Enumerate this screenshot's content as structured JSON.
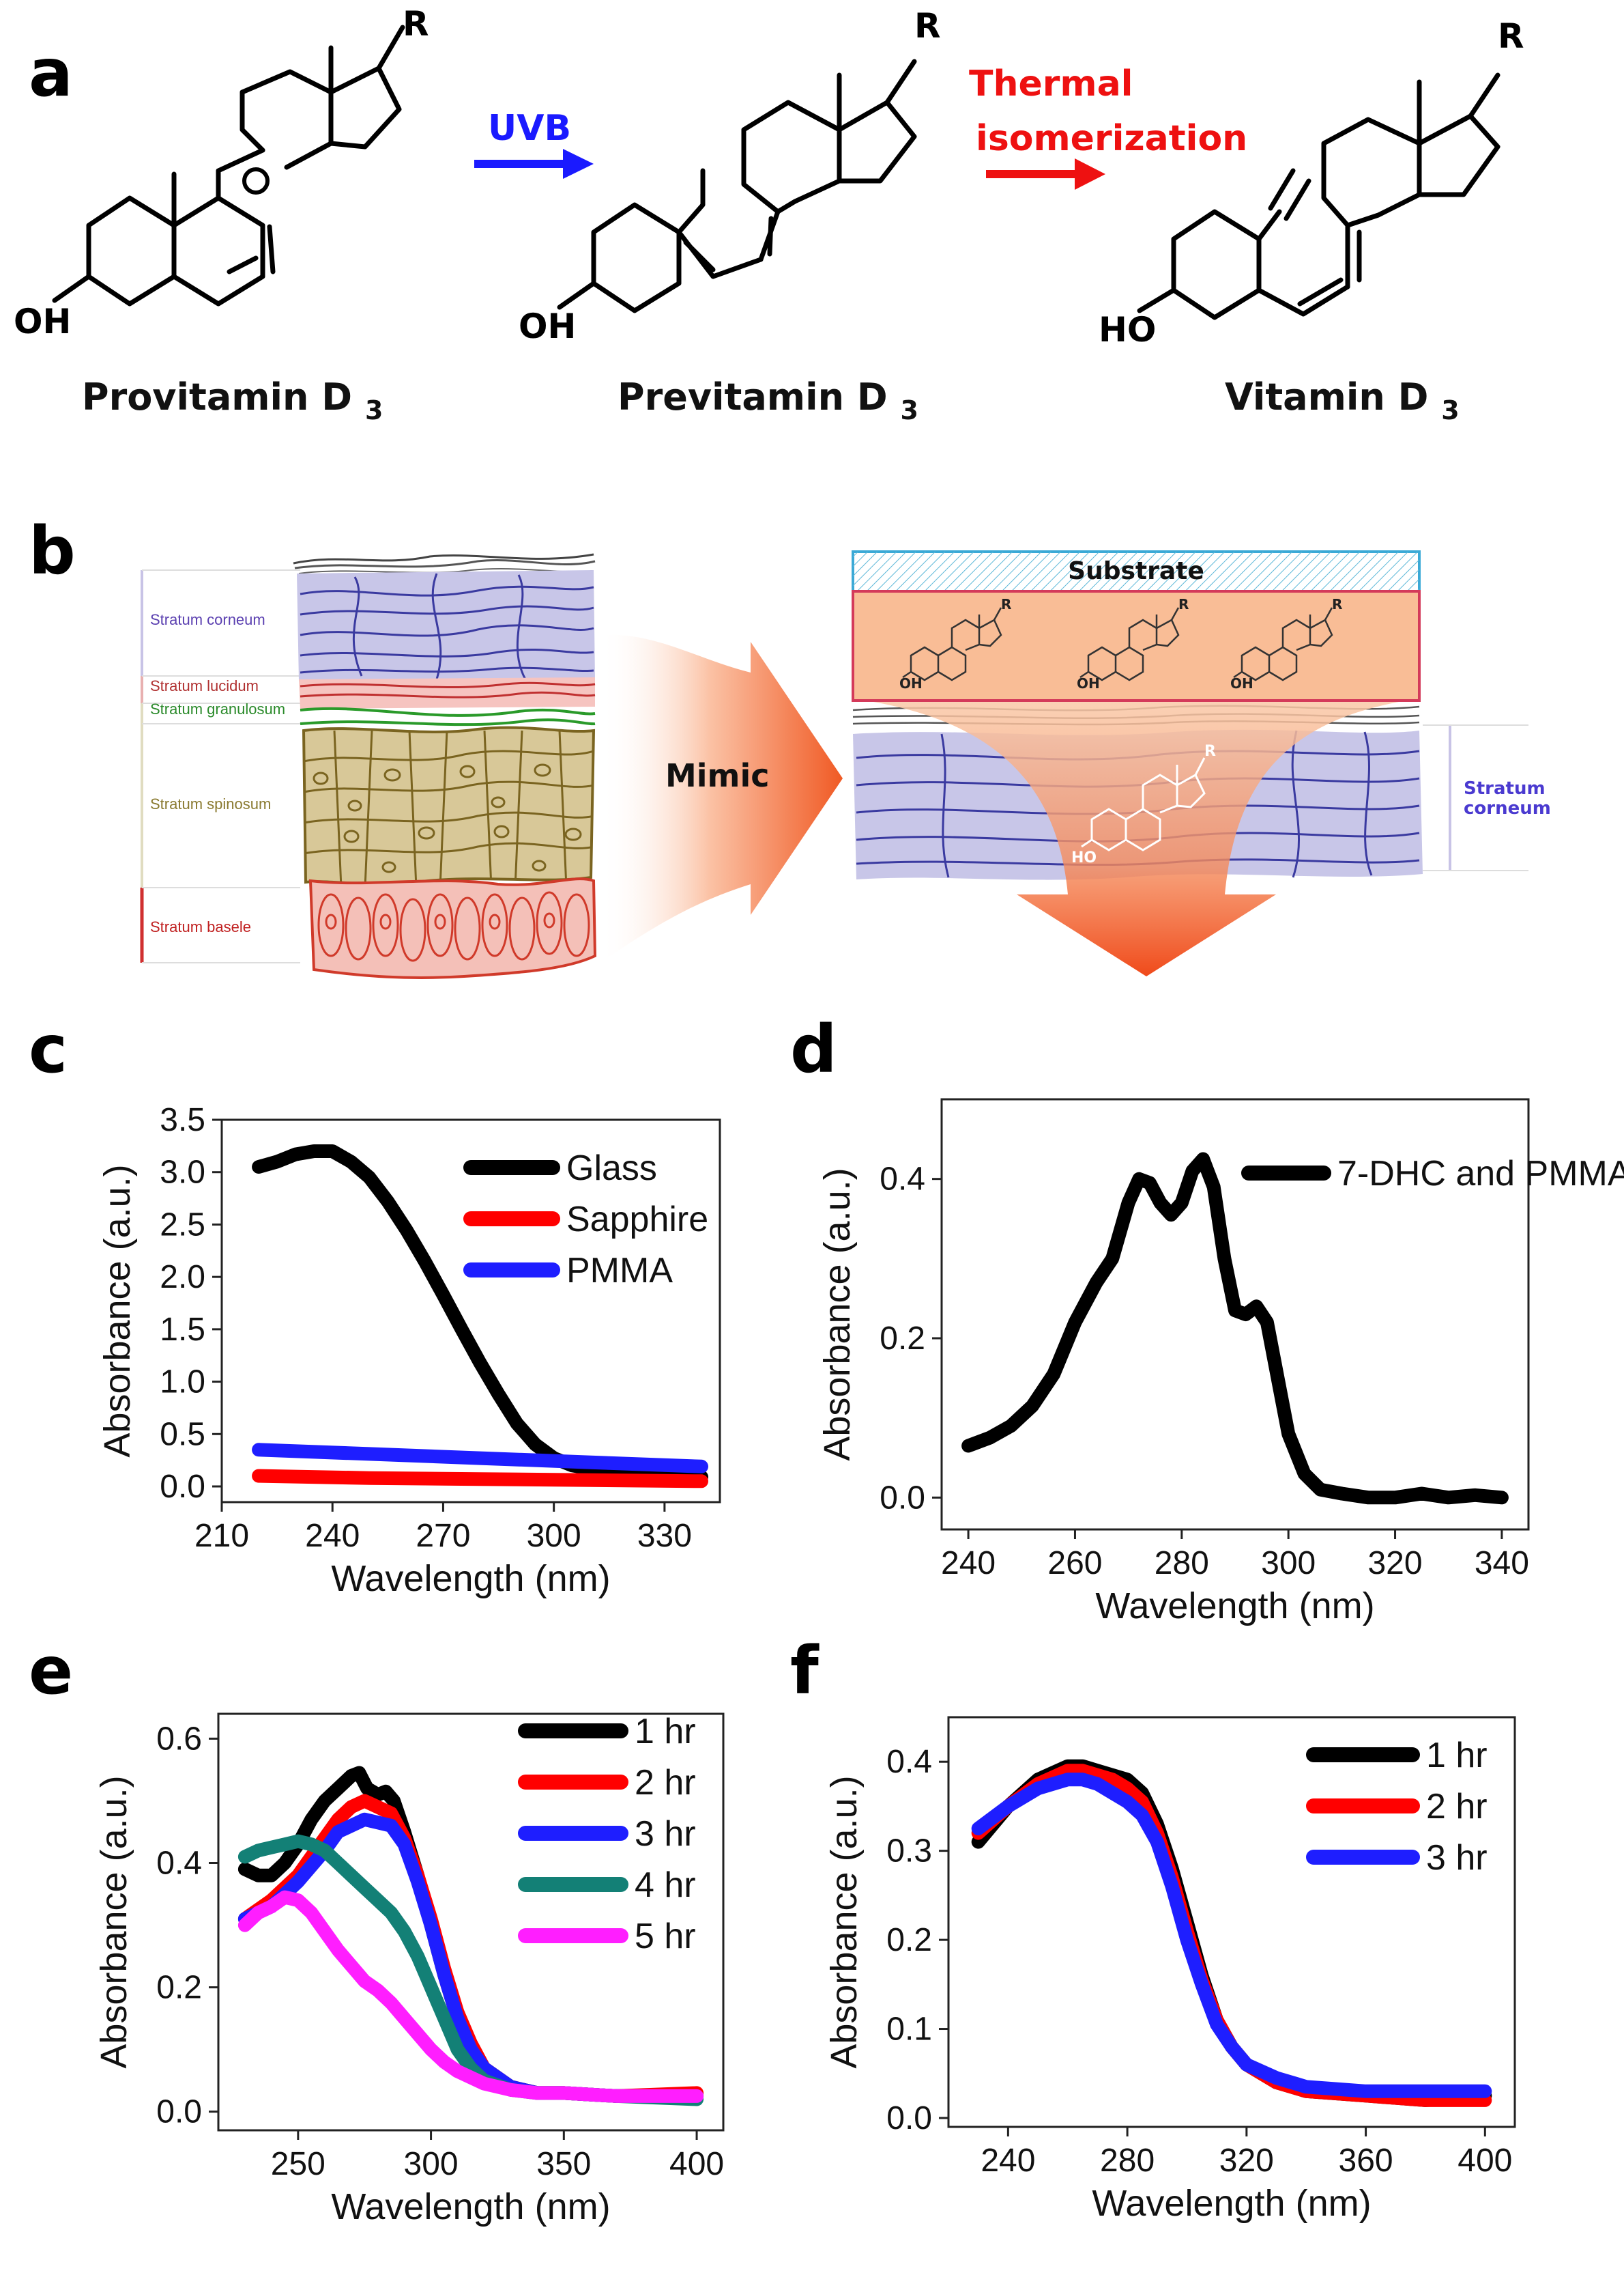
{
  "panels": {
    "a": "a",
    "b": "b",
    "c": "c",
    "d": "d",
    "e": "e",
    "f": "f"
  },
  "scheme": {
    "molecules": [
      {
        "name": "Provitamin D",
        "subscript": "3",
        "oh": "OH",
        "r": "R"
      },
      {
        "name": "Previtamin D",
        "subscript": "3",
        "oh": "OH",
        "r": "R"
      },
      {
        "name": "Vitamin D",
        "subscript": "3",
        "oh": "HO",
        "r": "R"
      }
    ],
    "arrow1_label": "UVB",
    "arrow2_label_line1": "Thermal",
    "arrow2_label_line2": "isomerization",
    "colors": {
      "uvb": "#1a1aff",
      "thermal": "#ee1111"
    }
  },
  "skin": {
    "layers": [
      {
        "label": "Stratum corneum",
        "color": "#5a3fb0"
      },
      {
        "label": "Stratum lucidum",
        "color": "#b03030"
      },
      {
        "label": "Stratum granulosum",
        "color": "#2a8a2a"
      },
      {
        "label": "Stratum spinosum",
        "color": "#8a7a30"
      },
      {
        "label": "Stratum basele",
        "color": "#c02020"
      }
    ],
    "mimic_label": "Mimic",
    "substrate_label": "Substrate",
    "corneum_label_line1": "Stratum",
    "corneum_label_line2": "corneum",
    "small_oh": "OH",
    "small_ho": "HO",
    "small_r": "R"
  },
  "chart_data": [
    {
      "id": "c",
      "type": "line",
      "xlabel": "Wavelength (nm)",
      "ylabel": "Absorbance (a.u.)",
      "xlim": [
        210,
        345
      ],
      "ylim": [
        -0.15,
        3.5
      ],
      "xticks": [
        210,
        240,
        270,
        300,
        330
      ],
      "yticks": [
        0.0,
        0.5,
        1.0,
        1.5,
        2.0,
        2.5,
        3.0,
        3.5
      ],
      "ytick_labels": [
        "0.0",
        "0.5",
        "1.0",
        "1.5",
        "2.0",
        "2.5",
        "3.0",
        "3.5"
      ],
      "series": [
        {
          "name": "Glass",
          "color": "#000000",
          "x": [
            220,
            225,
            230,
            235,
            240,
            245,
            250,
            255,
            260,
            265,
            270,
            275,
            280,
            285,
            290,
            295,
            300,
            305,
            310,
            320,
            330,
            340
          ],
          "y": [
            3.05,
            3.1,
            3.17,
            3.2,
            3.2,
            3.1,
            2.95,
            2.72,
            2.45,
            2.15,
            1.83,
            1.5,
            1.18,
            0.88,
            0.6,
            0.4,
            0.27,
            0.2,
            0.17,
            0.14,
            0.11,
            0.09
          ]
        },
        {
          "name": "Sapphire",
          "color": "#ff0000",
          "x": [
            220,
            250,
            280,
            310,
            340
          ],
          "y": [
            0.1,
            0.08,
            0.07,
            0.06,
            0.05
          ]
        },
        {
          "name": "PMMA",
          "color": "#1e1eff",
          "x": [
            220,
            250,
            280,
            310,
            340
          ],
          "y": [
            0.35,
            0.31,
            0.27,
            0.23,
            0.19
          ]
        }
      ]
    },
    {
      "id": "d",
      "type": "line",
      "xlabel": "Wavelength (nm)",
      "ylabel": "Absorbance (a.u.)",
      "xlim": [
        235,
        345
      ],
      "ylim": [
        -0.04,
        0.5
      ],
      "xticks": [
        240,
        260,
        280,
        300,
        320,
        340
      ],
      "yticks": [
        0.0,
        0.2,
        0.4
      ],
      "ytick_labels": [
        "0.0",
        "0.2",
        "0.4"
      ],
      "series": [
        {
          "name": "7-DHC and PMMA",
          "color": "#000000",
          "x": [
            240,
            244,
            248,
            252,
            256,
            260,
            264,
            267,
            270,
            272,
            274,
            276,
            278,
            280,
            282,
            284,
            286,
            288,
            290,
            292,
            294,
            296,
            298,
            300,
            303,
            306,
            310,
            315,
            320,
            325,
            330,
            335,
            340
          ],
          "y": [
            0.065,
            0.075,
            0.09,
            0.115,
            0.155,
            0.22,
            0.27,
            0.3,
            0.37,
            0.4,
            0.395,
            0.37,
            0.355,
            0.37,
            0.41,
            0.425,
            0.39,
            0.3,
            0.235,
            0.23,
            0.24,
            0.22,
            0.15,
            0.08,
            0.03,
            0.01,
            0.005,
            0.0,
            0.0,
            0.005,
            0.0,
            0.003,
            0.0
          ]
        }
      ]
    },
    {
      "id": "e",
      "type": "line",
      "xlabel": "Wavelength (nm)",
      "ylabel": "Absorbance (a.u.)",
      "xlim": [
        220,
        410
      ],
      "ylim": [
        -0.03,
        0.64
      ],
      "xticks": [
        250,
        300,
        350,
        400
      ],
      "yticks": [
        0.0,
        0.2,
        0.4,
        0.6
      ],
      "ytick_labels": [
        "0.0",
        "0.2",
        "0.4",
        "0.6"
      ],
      "series": [
        {
          "name": "1 hr",
          "color": "#000000",
          "x": [
            230,
            235,
            240,
            245,
            250,
            255,
            260,
            265,
            270,
            273,
            276,
            280,
            283,
            286,
            290,
            295,
            300,
            305,
            310,
            315,
            320,
            330,
            340,
            350,
            370,
            400
          ],
          "y": [
            0.39,
            0.38,
            0.38,
            0.4,
            0.43,
            0.47,
            0.5,
            0.52,
            0.54,
            0.545,
            0.52,
            0.51,
            0.515,
            0.5,
            0.45,
            0.38,
            0.3,
            0.22,
            0.15,
            0.1,
            0.07,
            0.04,
            0.03,
            0.03,
            0.025,
            0.025
          ]
        },
        {
          "name": "2 hr",
          "color": "#ff0000",
          "x": [
            230,
            240,
            250,
            260,
            265,
            270,
            275,
            280,
            285,
            290,
            295,
            300,
            305,
            310,
            315,
            320,
            330,
            340,
            350,
            370,
            400
          ],
          "y": [
            0.31,
            0.34,
            0.38,
            0.44,
            0.47,
            0.49,
            0.5,
            0.49,
            0.48,
            0.44,
            0.38,
            0.31,
            0.23,
            0.16,
            0.11,
            0.07,
            0.04,
            0.03,
            0.03,
            0.025,
            0.03
          ]
        },
        {
          "name": "3 hr",
          "color": "#1e1eff",
          "x": [
            230,
            240,
            250,
            260,
            265,
            270,
            275,
            280,
            285,
            290,
            295,
            300,
            305,
            310,
            315,
            320,
            330,
            340,
            350,
            370,
            400
          ],
          "y": [
            0.31,
            0.33,
            0.37,
            0.42,
            0.45,
            0.46,
            0.47,
            0.465,
            0.46,
            0.43,
            0.37,
            0.3,
            0.22,
            0.15,
            0.1,
            0.07,
            0.04,
            0.03,
            0.03,
            0.025,
            0.025
          ]
        },
        {
          "name": "4 hr",
          "color": "#138076",
          "x": [
            230,
            235,
            240,
            245,
            250,
            255,
            260,
            265,
            270,
            275,
            280,
            285,
            290,
            295,
            300,
            305,
            310,
            315,
            320,
            330,
            340,
            350,
            370,
            400
          ],
          "y": [
            0.41,
            0.42,
            0.425,
            0.43,
            0.435,
            0.43,
            0.42,
            0.4,
            0.38,
            0.36,
            0.34,
            0.32,
            0.29,
            0.25,
            0.2,
            0.15,
            0.1,
            0.07,
            0.05,
            0.035,
            0.03,
            0.03,
            0.025,
            0.02
          ]
        },
        {
          "name": "5 hr",
          "color": "#ff1eff",
          "x": [
            230,
            235,
            240,
            245,
            250,
            255,
            260,
            265,
            270,
            275,
            280,
            285,
            290,
            295,
            300,
            305,
            310,
            320,
            330,
            340,
            350,
            370,
            400
          ],
          "y": [
            0.3,
            0.32,
            0.33,
            0.345,
            0.34,
            0.32,
            0.29,
            0.26,
            0.235,
            0.21,
            0.195,
            0.175,
            0.15,
            0.125,
            0.1,
            0.08,
            0.065,
            0.045,
            0.035,
            0.03,
            0.03,
            0.025,
            0.025
          ]
        }
      ]
    },
    {
      "id": "f",
      "type": "line",
      "xlabel": "Wavelength (nm)",
      "ylabel": "Absorbance (a.u.)",
      "xlim": [
        220,
        410
      ],
      "ylim": [
        -0.01,
        0.45
      ],
      "xticks": [
        240,
        280,
        320,
        360,
        400
      ],
      "yticks": [
        0.0,
        0.1,
        0.2,
        0.3,
        0.4
      ],
      "ytick_labels": [
        "0.0",
        "0.1",
        "0.2",
        "0.3",
        "0.4"
      ],
      "series": [
        {
          "name": "1 hr",
          "color": "#000000",
          "x": [
            230,
            240,
            250,
            260,
            265,
            270,
            275,
            280,
            285,
            290,
            295,
            300,
            305,
            310,
            315,
            320,
            330,
            340,
            360,
            380,
            400
          ],
          "y": [
            0.31,
            0.35,
            0.38,
            0.395,
            0.395,
            0.39,
            0.385,
            0.38,
            0.365,
            0.33,
            0.28,
            0.22,
            0.16,
            0.11,
            0.08,
            0.06,
            0.04,
            0.03,
            0.025,
            0.02,
            0.025
          ]
        },
        {
          "name": "2 hr",
          "color": "#ff0000",
          "x": [
            230,
            240,
            250,
            260,
            265,
            270,
            275,
            280,
            285,
            290,
            295,
            300,
            305,
            310,
            315,
            320,
            330,
            340,
            360,
            380,
            400
          ],
          "y": [
            0.32,
            0.35,
            0.375,
            0.39,
            0.39,
            0.385,
            0.38,
            0.37,
            0.355,
            0.32,
            0.27,
            0.21,
            0.155,
            0.11,
            0.08,
            0.06,
            0.04,
            0.03,
            0.025,
            0.02,
            0.02
          ]
        },
        {
          "name": "3 hr",
          "color": "#1e1eff",
          "x": [
            230,
            240,
            250,
            260,
            265,
            270,
            275,
            280,
            285,
            290,
            295,
            300,
            305,
            310,
            315,
            320,
            330,
            340,
            360,
            380,
            400
          ],
          "y": [
            0.325,
            0.35,
            0.37,
            0.38,
            0.38,
            0.375,
            0.365,
            0.355,
            0.34,
            0.31,
            0.26,
            0.2,
            0.15,
            0.105,
            0.08,
            0.06,
            0.045,
            0.035,
            0.03,
            0.03,
            0.03
          ]
        }
      ]
    }
  ]
}
